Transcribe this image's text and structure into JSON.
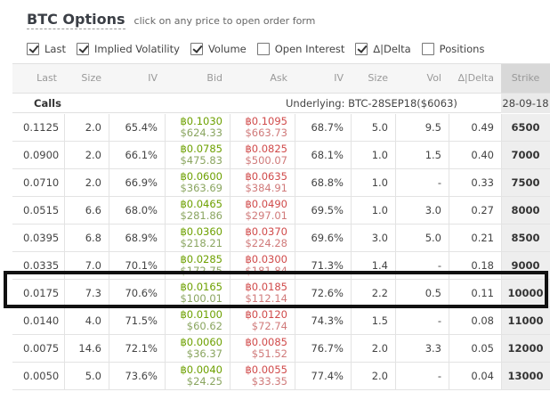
{
  "header": {
    "title": "BTC Options",
    "hint": "click on any price to open order form"
  },
  "filters": [
    {
      "label": "Last",
      "checked": true
    },
    {
      "label": "Implied Volatility",
      "checked": true
    },
    {
      "label": "Volume",
      "checked": true
    },
    {
      "label": "Open Interest",
      "checked": false
    },
    {
      "label": "∆|Delta",
      "checked": true
    },
    {
      "label": "Positions",
      "checked": false
    }
  ],
  "columns": [
    "Last",
    "Size",
    "IV",
    "Bid",
    "Ask",
    "IV",
    "Size",
    "Vol",
    "∆|Delta",
    "Strike"
  ],
  "calls_label": "Calls",
  "underlying": "Underlying: BTC-28SEP18($6063)",
  "expiry": "28-09-18",
  "rows": [
    {
      "last": "0.1125",
      "size": "2.0",
      "iv": "65.4%",
      "bid": "฿0.1030",
      "bid_usd": "$624.33",
      "ask": "฿0.1095",
      "ask_usd": "$663.73",
      "ask_iv": "68.7%",
      "ask_size": "5.0",
      "vol": "9.5",
      "delta": "0.49",
      "strike": "6500"
    },
    {
      "last": "0.0900",
      "size": "2.0",
      "iv": "66.1%",
      "bid": "฿0.0785",
      "bid_usd": "$475.83",
      "ask": "฿0.0825",
      "ask_usd": "$500.07",
      "ask_iv": "68.1%",
      "ask_size": "1.0",
      "vol": "1.5",
      "delta": "0.40",
      "strike": "7000"
    },
    {
      "last": "0.0710",
      "size": "2.0",
      "iv": "66.9%",
      "bid": "฿0.0600",
      "bid_usd": "$363.69",
      "ask": "฿0.0635",
      "ask_usd": "$384.91",
      "ask_iv": "68.8%",
      "ask_size": "1.0",
      "vol": "-",
      "delta": "0.33",
      "strike": "7500"
    },
    {
      "last": "0.0515",
      "size": "6.6",
      "iv": "68.0%",
      "bid": "฿0.0465",
      "bid_usd": "$281.86",
      "ask": "฿0.0490",
      "ask_usd": "$297.01",
      "ask_iv": "69.5%",
      "ask_size": "1.0",
      "vol": "3.0",
      "delta": "0.27",
      "strike": "8000"
    },
    {
      "last": "0.0395",
      "size": "6.8",
      "iv": "68.9%",
      "bid": "฿0.0360",
      "bid_usd": "$218.21",
      "ask": "฿0.0370",
      "ask_usd": "$224.28",
      "ask_iv": "69.6%",
      "ask_size": "3.0",
      "vol": "5.0",
      "delta": "0.21",
      "strike": "8500"
    },
    {
      "last": "0.0335",
      "size": "7.0",
      "iv": "70.1%",
      "bid": "฿0.0285",
      "bid_usd": "$172.75",
      "ask": "฿0.0300",
      "ask_usd": "$181.84",
      "ask_iv": "71.3%",
      "ask_size": "1.4",
      "vol": "-",
      "delta": "0.18",
      "strike": "9000"
    },
    {
      "last": "0.0175",
      "size": "7.3",
      "iv": "70.6%",
      "bid": "฿0.0165",
      "bid_usd": "$100.01",
      "ask": "฿0.0185",
      "ask_usd": "$112.14",
      "ask_iv": "72.6%",
      "ask_size": "2.2",
      "vol": "0.5",
      "delta": "0.11",
      "strike": "10000"
    },
    {
      "last": "0.0140",
      "size": "4.0",
      "iv": "71.5%",
      "bid": "฿0.0100",
      "bid_usd": "$60.62",
      "ask": "฿0.0120",
      "ask_usd": "$72.74",
      "ask_iv": "74.3%",
      "ask_size": "1.5",
      "vol": "-",
      "delta": "0.08",
      "strike": "11000"
    },
    {
      "last": "0.0075",
      "size": "14.6",
      "iv": "72.1%",
      "bid": "฿0.0060",
      "bid_usd": "$36.37",
      "ask": "฿0.0085",
      "ask_usd": "$51.52",
      "ask_iv": "76.7%",
      "ask_size": "2.0",
      "vol": "3.3",
      "delta": "0.05",
      "strike": "12000"
    },
    {
      "last": "0.0050",
      "size": "5.0",
      "iv": "73.6%",
      "bid": "฿0.0040",
      "bid_usd": "$24.25",
      "ask": "฿0.0055",
      "ask_usd": "$33.35",
      "ask_iv": "77.4%",
      "ask_size": "2.0",
      "vol": "-",
      "delta": "0.04",
      "strike": "13000"
    }
  ],
  "highlighted_row": 6
}
